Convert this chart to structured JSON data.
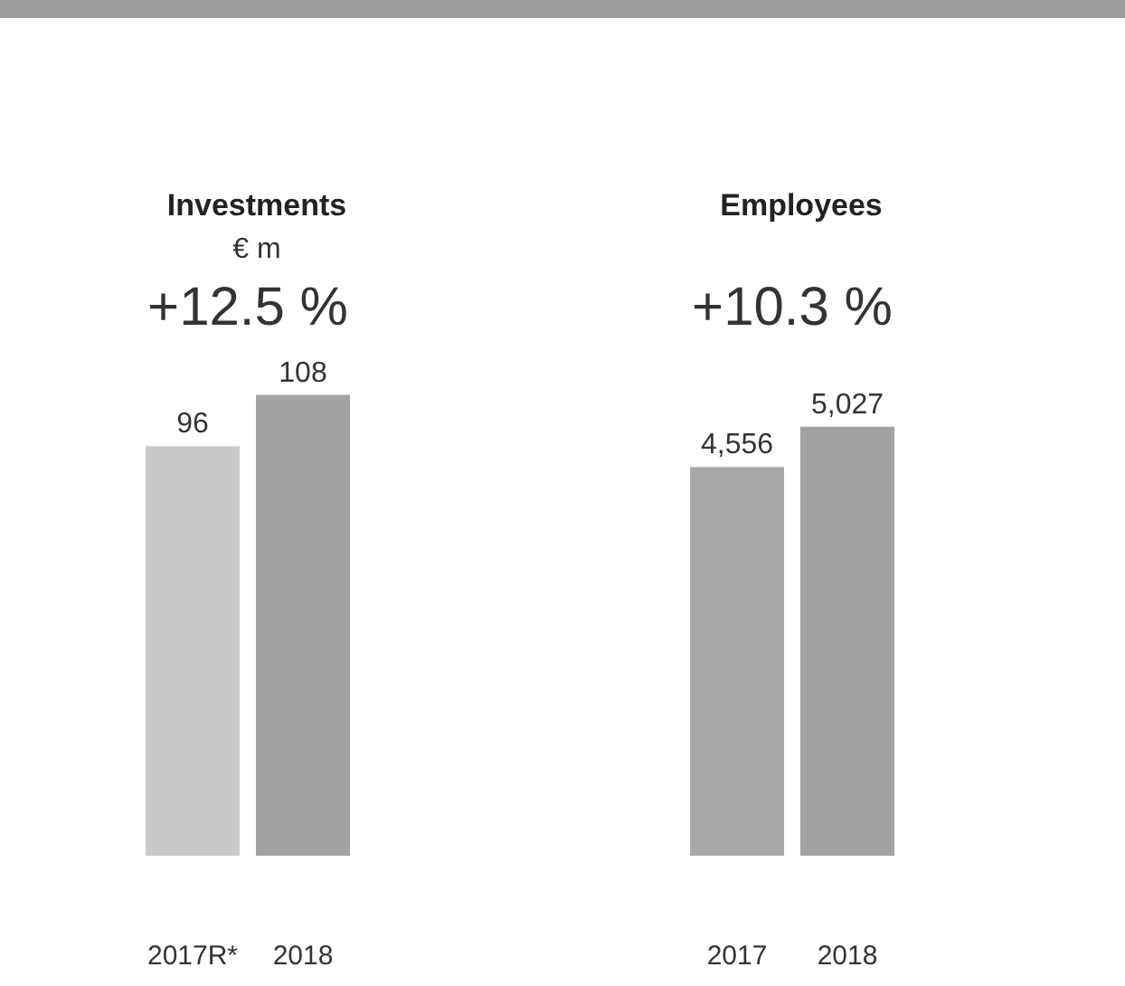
{
  "chart_data": [
    {
      "type": "bar",
      "title": "Investments",
      "subtitle": "€ m",
      "annotations": [
        "+12.5 %"
      ],
      "categories": [
        "2017R*",
        "2018"
      ],
      "values": [
        96,
        108
      ],
      "colors": [
        "#c9c9c9",
        "#a3a3a3"
      ],
      "tick_labels": "x",
      "data_labels": true
    },
    {
      "type": "bar",
      "title": "Employees",
      "annotations": [
        "+10.3 %"
      ],
      "categories": [
        "2017",
        "2018"
      ],
      "values": [
        4556,
        5027
      ],
      "value_labels": [
        "4,556",
        "5,027"
      ],
      "colors": [
        "#a8a8a8",
        "#a3a3a3"
      ],
      "tick_labels": "x"
    }
  ]
}
